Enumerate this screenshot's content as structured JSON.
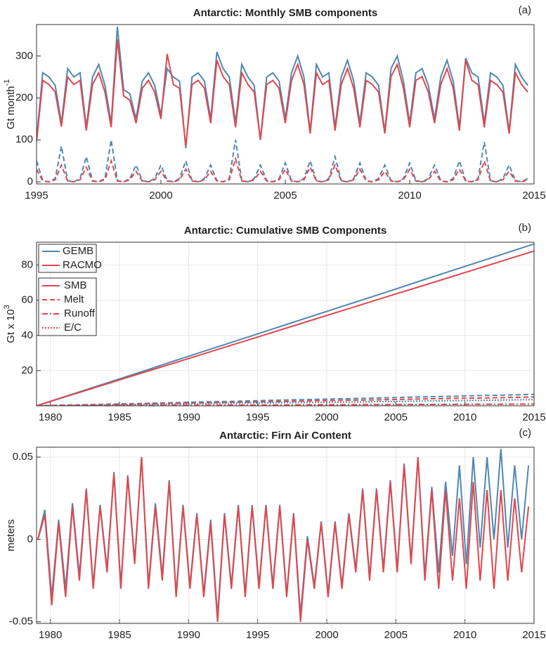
{
  "chart_data": [
    {
      "type": "line",
      "title": "Antarctic: Monthly SMB components",
      "panel": "(a)",
      "ylabel": "Gt month",
      "ylabel_sup": "-1",
      "xlim": [
        1995,
        2015
      ],
      "xticks": [
        1995,
        2000,
        2005,
        2010,
        2015
      ],
      "ylim": [
        -5,
        375
      ],
      "yticks": [
        0,
        100,
        200,
        300
      ],
      "grid": false,
      "x": [
        1995,
        1995.25,
        1995.5,
        1995.75,
        1996,
        1996.25,
        1996.5,
        1996.75,
        1997,
        1997.25,
        1997.5,
        1997.75,
        1998,
        1998.25,
        1998.5,
        1998.75,
        1999,
        1999.25,
        1999.5,
        1999.75,
        2000,
        2000.25,
        2000.5,
        2000.75,
        2001,
        2001.25,
        2001.5,
        2001.75,
        2002,
        2002.25,
        2002.5,
        2002.75,
        2003,
        2003.25,
        2003.5,
        2003.75,
        2004,
        2004.25,
        2004.5,
        2004.75,
        2005,
        2005.25,
        2005.5,
        2005.75,
        2006,
        2006.25,
        2006.5,
        2006.75,
        2007,
        2007.25,
        2007.5,
        2007.75,
        2008,
        2008.25,
        2008.5,
        2008.75,
        2009,
        2009.25,
        2009.5,
        2009.75,
        2010,
        2010.25,
        2010.5,
        2010.75,
        2011,
        2011.25,
        2011.5,
        2011.75,
        2012,
        2012.25,
        2012.5,
        2012.75,
        2013,
        2013.25,
        2013.5,
        2013.75,
        2014,
        2014.25,
        2014.5,
        2014.75
      ],
      "series": [
        {
          "color": "#4f87b3",
          "style": "solid",
          "values": [
            100,
            260,
            250,
            230,
            140,
            270,
            250,
            260,
            130,
            250,
            280,
            230,
            140,
            370,
            220,
            210,
            150,
            240,
            260,
            230,
            160,
            270,
            250,
            240,
            80,
            250,
            260,
            240,
            150,
            310,
            270,
            250,
            140,
            280,
            250,
            230,
            100,
            250,
            260,
            240,
            150,
            260,
            300,
            250,
            120,
            280,
            250,
            260,
            130,
            250,
            290,
            240,
            140,
            260,
            250,
            230,
            120,
            270,
            300,
            240,
            140,
            260,
            270,
            230,
            150,
            250,
            290,
            240,
            130,
            295,
            260,
            250,
            140,
            260,
            250,
            230,
            120,
            280,
            250,
            230
          ]
        },
        {
          "color": "#e0474c",
          "style": "solid",
          "values": [
            95,
            242,
            232,
            214,
            132,
            250,
            232,
            242,
            122,
            232,
            260,
            214,
            130,
            340,
            205,
            195,
            140,
            223,
            242,
            214,
            150,
            305,
            232,
            223,
            85,
            232,
            242,
            223,
            140,
            290,
            251,
            232,
            130,
            260,
            232,
            214,
            100,
            232,
            242,
            223,
            140,
            242,
            280,
            232,
            115,
            260,
            232,
            242,
            122,
            232,
            270,
            223,
            130,
            242,
            232,
            214,
            115,
            251,
            280,
            223,
            130,
            242,
            251,
            214,
            140,
            232,
            270,
            223,
            122,
            290,
            242,
            232,
            130,
            242,
            232,
            214,
            115,
            260,
            232,
            214
          ]
        },
        {
          "color": "#4f87b3",
          "style": "dashed",
          "values": [
            50,
            3,
            0,
            8,
            85,
            3,
            0,
            8,
            60,
            3,
            0,
            8,
            100,
            3,
            0,
            8,
            40,
            3,
            0,
            8,
            40,
            3,
            0,
            8,
            50,
            3,
            0,
            8,
            40,
            3,
            0,
            8,
            100,
            3,
            0,
            8,
            40,
            3,
            0,
            8,
            45,
            3,
            0,
            8,
            50,
            3,
            0,
            8,
            60,
            3,
            0,
            8,
            45,
            3,
            0,
            8,
            40,
            3,
            0,
            8,
            45,
            3,
            0,
            8,
            40,
            3,
            0,
            8,
            50,
            3,
            0,
            8,
            95,
            3,
            0,
            8,
            40,
            3,
            0,
            8
          ]
        },
        {
          "color": "#e0474c",
          "style": "dashed",
          "values": [
            30,
            2,
            0,
            5,
            40,
            2,
            0,
            5,
            35,
            2,
            0,
            5,
            50,
            2,
            0,
            5,
            25,
            2,
            0,
            5,
            25,
            2,
            0,
            5,
            30,
            2,
            0,
            5,
            25,
            2,
            0,
            5,
            55,
            2,
            0,
            5,
            25,
            2,
            0,
            5,
            30,
            2,
            0,
            5,
            35,
            2,
            0,
            5,
            40,
            2,
            0,
            5,
            30,
            2,
            0,
            5,
            25,
            2,
            0,
            5,
            30,
            2,
            0,
            5,
            25,
            2,
            0,
            5,
            30,
            2,
            0,
            5,
            50,
            2,
            0,
            5,
            25,
            2,
            0,
            5
          ]
        }
      ]
    },
    {
      "type": "line",
      "title": "Antarctic: Cumulative SMB Components",
      "panel": "(b)",
      "ylabel": "Gt x 10",
      "ylabel_sup": "3",
      "xlim": [
        1979,
        2015
      ],
      "xticks": [
        1980,
        1985,
        1990,
        1995,
        2000,
        2005,
        2010,
        2015
      ],
      "ylim": [
        0,
        93
      ],
      "yticks": [
        20,
        40,
        60,
        80
      ],
      "grid": true,
      "legend": {
        "colors": [
          {
            "name": "GEMB",
            "color": "#4f87b3"
          },
          {
            "name": "RACMO",
            "color": "#e0474c"
          }
        ],
        "styles": [
          {
            "name": "SMB",
            "style": "solid"
          },
          {
            "name": "Melt",
            "style": "dashed"
          },
          {
            "name": "Runoff",
            "style": "dashdot"
          },
          {
            "name": "E/C",
            "style": "dotted"
          }
        ]
      },
      "x": [
        1979,
        1981,
        1983,
        1985,
        1987,
        1989,
        1991,
        1993,
        1995,
        1997,
        1999,
        2001,
        2003,
        2005,
        2007,
        2009,
        2011,
        2013,
        2015
      ],
      "series": [
        {
          "color": "#4f87b3",
          "style": "solid",
          "values": [
            0,
            5.1,
            10.2,
            15.3,
            20.4,
            25.6,
            30.7,
            35.8,
            40.9,
            46,
            51.1,
            56.2,
            61.3,
            66.4,
            71.6,
            76.7,
            81.8,
            86.9,
            92
          ]
        },
        {
          "color": "#e0474c",
          "style": "solid",
          "values": [
            0,
            4.9,
            9.8,
            14.7,
            19.6,
            24.4,
            29.3,
            34.2,
            39.1,
            44,
            48.9,
            53.8,
            58.7,
            63.6,
            68.4,
            73.3,
            78.2,
            83.1,
            88
          ]
        },
        {
          "color": "#4f87b3",
          "style": "dashed",
          "values": [
            0,
            0.4,
            0.7,
            1.1,
            1.4,
            1.8,
            2.2,
            2.5,
            2.9,
            3.3,
            3.6,
            4,
            4.3,
            4.7,
            5.1,
            5.4,
            5.8,
            6.1,
            6.5
          ]
        },
        {
          "color": "#e0474c",
          "style": "dashed",
          "values": [
            0,
            0.3,
            0.6,
            0.8,
            1.1,
            1.4,
            1.7,
            1.9,
            2.2,
            2.5,
            2.8,
            3.1,
            3.3,
            3.6,
            3.9,
            4.2,
            4.4,
            4.7,
            5
          ]
        },
        {
          "color": "#4f87b3",
          "style": "dotted",
          "values": [
            0,
            0.2,
            0.4,
            0.6,
            0.8,
            1,
            1.2,
            1.4,
            1.6,
            1.8,
            1.9,
            2.1,
            2.3,
            2.5,
            2.7,
            2.9,
            3.1,
            3.3,
            3.5
          ]
        },
        {
          "color": "#e0474c",
          "style": "dashdot",
          "values": [
            0,
            0.1,
            0.1,
            0.2,
            0.2,
            0.3,
            0.3,
            0.4,
            0.4,
            0.5,
            0.6,
            0.6,
            0.7,
            0.7,
            0.8,
            0.8,
            0.9,
            0.9,
            1
          ]
        }
      ]
    },
    {
      "type": "line",
      "title": "Antarctic: Firn Air Content",
      "panel": "(c)",
      "ylabel": "meters",
      "xlim": [
        1979,
        2015
      ],
      "xticks": [
        1980,
        1985,
        1990,
        1995,
        2000,
        2005,
        2010,
        2015
      ],
      "ylim": [
        -0.051,
        0.056
      ],
      "yticks": [
        -0.05,
        0,
        0.05
      ],
      "grid": true,
      "x": [
        1979.1,
        1979.6,
        1980.1,
        1980.6,
        1981.1,
        1981.6,
        1982.1,
        1982.6,
        1983.1,
        1983.6,
        1984.1,
        1984.6,
        1985.1,
        1985.6,
        1986.1,
        1986.6,
        1987.1,
        1987.6,
        1988.1,
        1988.6,
        1989.1,
        1989.6,
        1990.1,
        1990.6,
        1991.1,
        1991.6,
        1992.1,
        1992.6,
        1993.1,
        1993.6,
        1994.1,
        1994.6,
        1995.1,
        1995.6,
        1996.1,
        1996.6,
        1997.1,
        1997.6,
        1998.1,
        1998.6,
        1999.1,
        1999.6,
        2000.1,
        2000.6,
        2001.1,
        2001.6,
        2002.1,
        2002.6,
        2003.1,
        2003.6,
        2004.1,
        2004.6,
        2005.1,
        2005.6,
        2006.1,
        2006.6,
        2007.1,
        2007.6,
        2008.1,
        2008.6,
        2009.1,
        2009.6,
        2010.1,
        2010.6,
        2011.1,
        2011.6,
        2012.1,
        2012.6,
        2013.1,
        2013.6,
        2014.1,
        2014.6
      ],
      "series": [
        {
          "color": "#4f87b3",
          "style": "solid",
          "values": [
            0,
            0.018,
            -0.035,
            0.012,
            -0.03,
            0.022,
            -0.022,
            0.031,
            -0.028,
            0.021,
            -0.018,
            0.041,
            -0.028,
            0.039,
            -0.013,
            0.05,
            -0.028,
            0.022,
            -0.022,
            0.036,
            -0.033,
            0.021,
            -0.028,
            0.016,
            -0.033,
            0.012,
            -0.047,
            0.016,
            -0.028,
            0.021,
            -0.033,
            0.021,
            -0.028,
            0.021,
            -0.028,
            0.021,
            -0.033,
            0.016,
            -0.046,
            0.002,
            -0.028,
            0.011,
            -0.033,
            0.011,
            -0.028,
            0.016,
            -0.018,
            0.031,
            -0.023,
            0.031,
            -0.018,
            0.036,
            -0.018,
            0.046,
            -0.013,
            0.05,
            -0.022,
            0.032,
            -0.02,
            0.035,
            -0.01,
            0.045,
            -0.015,
            0.05,
            -0.005,
            0.05,
            0,
            0.055,
            -0.005,
            0.045,
            0,
            0.045
          ]
        },
        {
          "color": "#e0474c",
          "style": "solid",
          "values": [
            0,
            0.015,
            -0.04,
            0.01,
            -0.035,
            0.02,
            -0.025,
            0.03,
            -0.03,
            0.02,
            -0.02,
            0.04,
            -0.03,
            0.038,
            -0.015,
            0.05,
            -0.03,
            0.02,
            -0.025,
            0.035,
            -0.035,
            0.02,
            -0.03,
            0.015,
            -0.035,
            0.01,
            -0.05,
            0.015,
            -0.03,
            0.02,
            -0.035,
            0.02,
            -0.03,
            0.02,
            -0.03,
            0.02,
            -0.035,
            0.015,
            -0.05,
            0,
            -0.03,
            0.01,
            -0.035,
            0.01,
            -0.03,
            0.015,
            -0.02,
            0.03,
            -0.025,
            0.03,
            -0.02,
            0.035,
            -0.02,
            0.045,
            -0.015,
            0.05,
            -0.025,
            0.03,
            -0.03,
            0.03,
            -0.025,
            0.025,
            -0.03,
            0.035,
            -0.025,
            0.03,
            -0.03,
            0.03,
            -0.025,
            0.025,
            -0.02,
            0.02
          ]
        }
      ]
    }
  ]
}
